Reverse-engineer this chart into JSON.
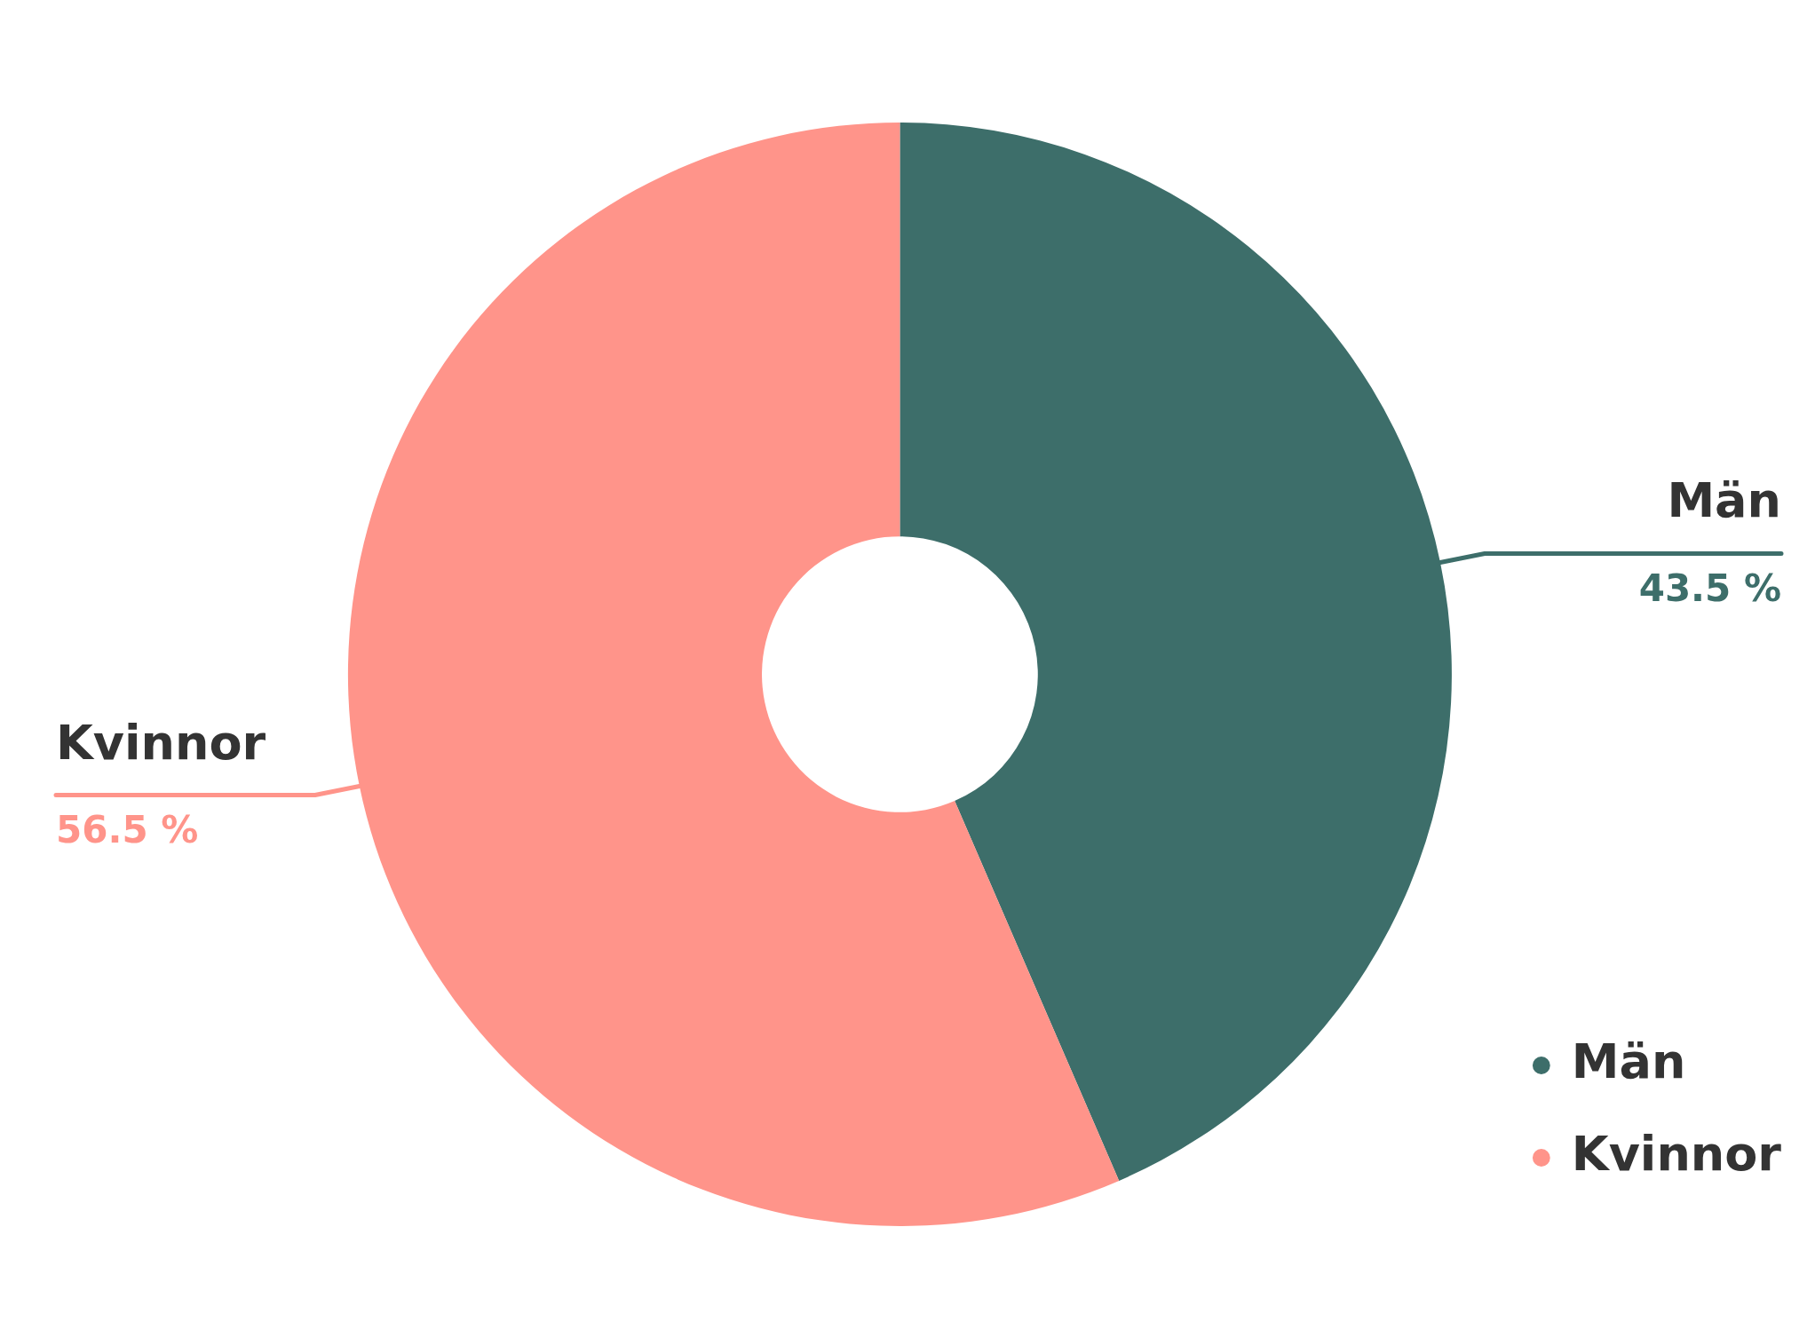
{
  "chart_data": {
    "type": "donut",
    "categories": [
      "Män",
      "Kvinnor"
    ],
    "values": [
      43.5,
      56.5
    ],
    "colors": [
      "#3d6e6a",
      "#ff948a"
    ],
    "value_labels": [
      "43.5 %",
      "56.5 %"
    ],
    "legend": "bottom right"
  }
}
